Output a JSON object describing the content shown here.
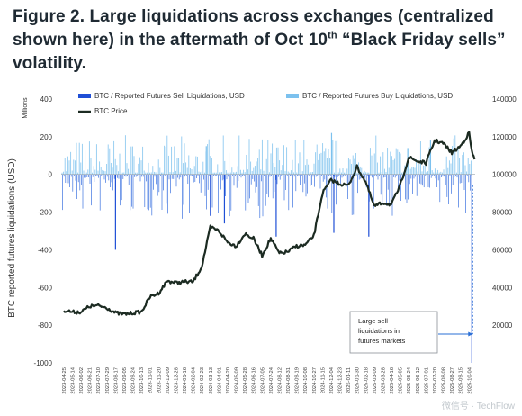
{
  "figure": {
    "title_pre": "Figure 2. Large liquidations across exchanges (centralized shown here) in the aftermath of Oct 10",
    "title_sup": "th",
    "title_post": " “Black Friday sells” volatility."
  },
  "watermark": "微信号 · TechFlow",
  "chart_data": {
    "type": "bar",
    "legend": [
      {
        "label": "BTC / Reported Futures Sell Liquidations, USD",
        "color": "#1f4fd6",
        "kind": "bar"
      },
      {
        "label": "BTC / Reported Futures Buy Liquidations, USD",
        "color": "#7cc1ee",
        "kind": "bar"
      },
      {
        "label": "BTC Price",
        "color": "#1c2b22",
        "kind": "line"
      }
    ],
    "left_axis": {
      "label": "BTC reported futures liquidations (USD)",
      "unit_label": "Millions",
      "range": [
        -1000,
        400
      ],
      "ticks": [
        400,
        200,
        0,
        -200,
        -400,
        -600,
        -800,
        -1000
      ]
    },
    "right_axis": {
      "range": [
        0,
        140000
      ],
      "ticks": [
        140000,
        120000,
        100000,
        80000,
        60000,
        40000,
        20000
      ]
    },
    "x_ticks": [
      "2023-04-25",
      "2023-05-14",
      "2023-06-02",
      "2023-06-21",
      "2023-07-10",
      "2023-07-29",
      "2023-08-17",
      "2023-09-05",
      "2023-09-24",
      "2023-10-13",
      "2023-11-01",
      "2023-11-20",
      "2023-12-09",
      "2023-12-28",
      "2024-01-16",
      "2024-02-04",
      "2024-02-23",
      "2024-03-13",
      "2024-04-01",
      "2024-04-20",
      "2024-05-09",
      "2024-05-28",
      "2024-06-16",
      "2024-07-05",
      "2024-07-24",
      "2024-08-12",
      "2024-08-31",
      "2024-09-19",
      "2024-10-08",
      "2024-10-27",
      "2024-11-15",
      "2024-12-04",
      "2024-12-23",
      "2025-01-11",
      "2025-01-30",
      "2025-02-18",
      "2025-03-09",
      "2025-03-28",
      "2025-04-16",
      "2025-05-05",
      "2025-05-24",
      "2025-06-12",
      "2025-07-01",
      "2025-07-20",
      "2025-08-08",
      "2025-08-27",
      "2025-09-15",
      "2025-10-04"
    ],
    "btc_price": [
      [
        "2023-04-25",
        28000
      ],
      [
        "2023-05-14",
        27000
      ],
      [
        "2023-06-02",
        27000
      ],
      [
        "2023-06-21",
        30000
      ],
      [
        "2023-07-10",
        30300
      ],
      [
        "2023-07-29",
        29300
      ],
      [
        "2023-08-17",
        26500
      ],
      [
        "2023-09-05",
        25800
      ],
      [
        "2023-09-24",
        26500
      ],
      [
        "2023-10-13",
        27000
      ],
      [
        "2023-11-01",
        35000
      ],
      [
        "2023-11-20",
        37000
      ],
      [
        "2023-12-09",
        43500
      ],
      [
        "2023-12-28",
        42500
      ],
      [
        "2024-01-16",
        43000
      ],
      [
        "2024-02-04",
        43000
      ],
      [
        "2024-02-23",
        51000
      ],
      [
        "2024-03-13",
        72000
      ],
      [
        "2024-04-01",
        70000
      ],
      [
        "2024-04-20",
        64000
      ],
      [
        "2024-05-09",
        62000
      ],
      [
        "2024-05-28",
        68500
      ],
      [
        "2024-06-16",
        66000
      ],
      [
        "2024-07-05",
        57000
      ],
      [
        "2024-07-24",
        66000
      ],
      [
        "2024-08-12",
        58000
      ],
      [
        "2024-08-31",
        59000
      ],
      [
        "2024-09-19",
        62000
      ],
      [
        "2024-10-08",
        62500
      ],
      [
        "2024-10-27",
        67500
      ],
      [
        "2024-11-15",
        90000
      ],
      [
        "2024-12-04",
        97000
      ],
      [
        "2024-12-23",
        95000
      ],
      [
        "2025-01-11",
        94000
      ],
      [
        "2025-01-30",
        104000
      ],
      [
        "2025-02-18",
        96000
      ],
      [
        "2025-03-09",
        83000
      ],
      [
        "2025-03-28",
        85000
      ],
      [
        "2025-04-16",
        84000
      ],
      [
        "2025-05-05",
        94000
      ],
      [
        "2025-05-24",
        109000
      ],
      [
        "2025-06-12",
        107000
      ],
      [
        "2025-07-01",
        106000
      ],
      [
        "2025-07-20",
        118000
      ],
      [
        "2025-08-08",
        116500
      ],
      [
        "2025-08-27",
        111500
      ],
      [
        "2025-09-15",
        115000
      ],
      [
        "2025-10-04",
        122000
      ],
      [
        "2025-10-10",
        112000
      ],
      [
        "2025-10-16",
        108000
      ]
    ],
    "notable_sell_liquidations": [
      [
        "2023-08-17",
        -400
      ],
      [
        "2024-03-13",
        -220
      ],
      [
        "2024-04-13",
        -260
      ],
      [
        "2024-08-05",
        -330
      ],
      [
        "2024-12-10",
        -310
      ],
      [
        "2025-02-25",
        -330
      ],
      [
        "2025-10-10",
        -1000
      ]
    ],
    "notable_buy_liquidations": [
      [
        "2024-03-04",
        150
      ],
      [
        "2024-12-05",
        220
      ],
      [
        "2025-05-22",
        140
      ],
      [
        "2025-07-11",
        180
      ]
    ],
    "annotation": "Large sell liquidations in futures markets"
  }
}
